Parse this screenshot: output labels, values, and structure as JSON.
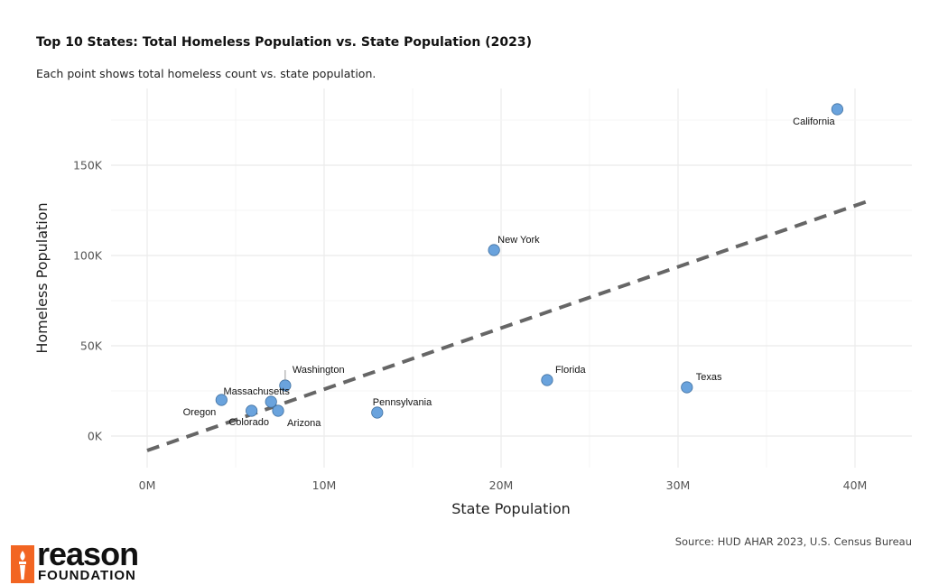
{
  "header": {
    "title": "Top 10 States: Total Homeless Population vs. State Population (2023)",
    "subtitle": "Each point shows total homeless count vs. state population."
  },
  "footer": {
    "source": "Source: HUD AHAR 2023, U.S. Census Bureau",
    "logo_word": "reason",
    "logo_sub": "FOUNDATION",
    "logo_color": "#f26522"
  },
  "colors": {
    "point_fill": "#6aa3dd",
    "point_stroke": "#3f6f9f",
    "trend_line": "#666666",
    "grid": "#ebebeb"
  },
  "chart_data": {
    "type": "scatter",
    "xlabel": "State Population",
    "ylabel": "Homeless Population",
    "xlim": [
      0,
      42
    ],
    "ylim": [
      -10000,
      190000
    ],
    "x_unit": "millions",
    "x_ticks": [
      0,
      10,
      20,
      30,
      40
    ],
    "x_tick_labels": [
      "0M",
      "10M",
      "20M",
      "30M",
      "40M"
    ],
    "y_ticks": [
      0,
      50000,
      100000,
      150000
    ],
    "y_tick_labels": [
      "0K",
      "50K",
      "100K",
      "150K"
    ],
    "grid": true,
    "points": [
      {
        "label": "California",
        "x": 39.0,
        "y": 181000
      },
      {
        "label": "New York",
        "x": 19.6,
        "y": 103000
      },
      {
        "label": "Florida",
        "x": 22.6,
        "y": 31000
      },
      {
        "label": "Texas",
        "x": 30.5,
        "y": 27000
      },
      {
        "label": "Washington",
        "x": 7.8,
        "y": 28000
      },
      {
        "label": "Massachusetts",
        "x": 7.0,
        "y": 19000
      },
      {
        "label": "Oregon",
        "x": 4.2,
        "y": 20000
      },
      {
        "label": "Pennsylvania",
        "x": 13.0,
        "y": 13000
      },
      {
        "label": "Colorado",
        "x": 5.9,
        "y": 14000
      },
      {
        "label": "Arizona",
        "x": 7.4,
        "y": 14000
      }
    ],
    "trend_line": {
      "x": [
        0,
        41
      ],
      "y": [
        -8000,
        131000
      ],
      "style": "dashed"
    }
  }
}
